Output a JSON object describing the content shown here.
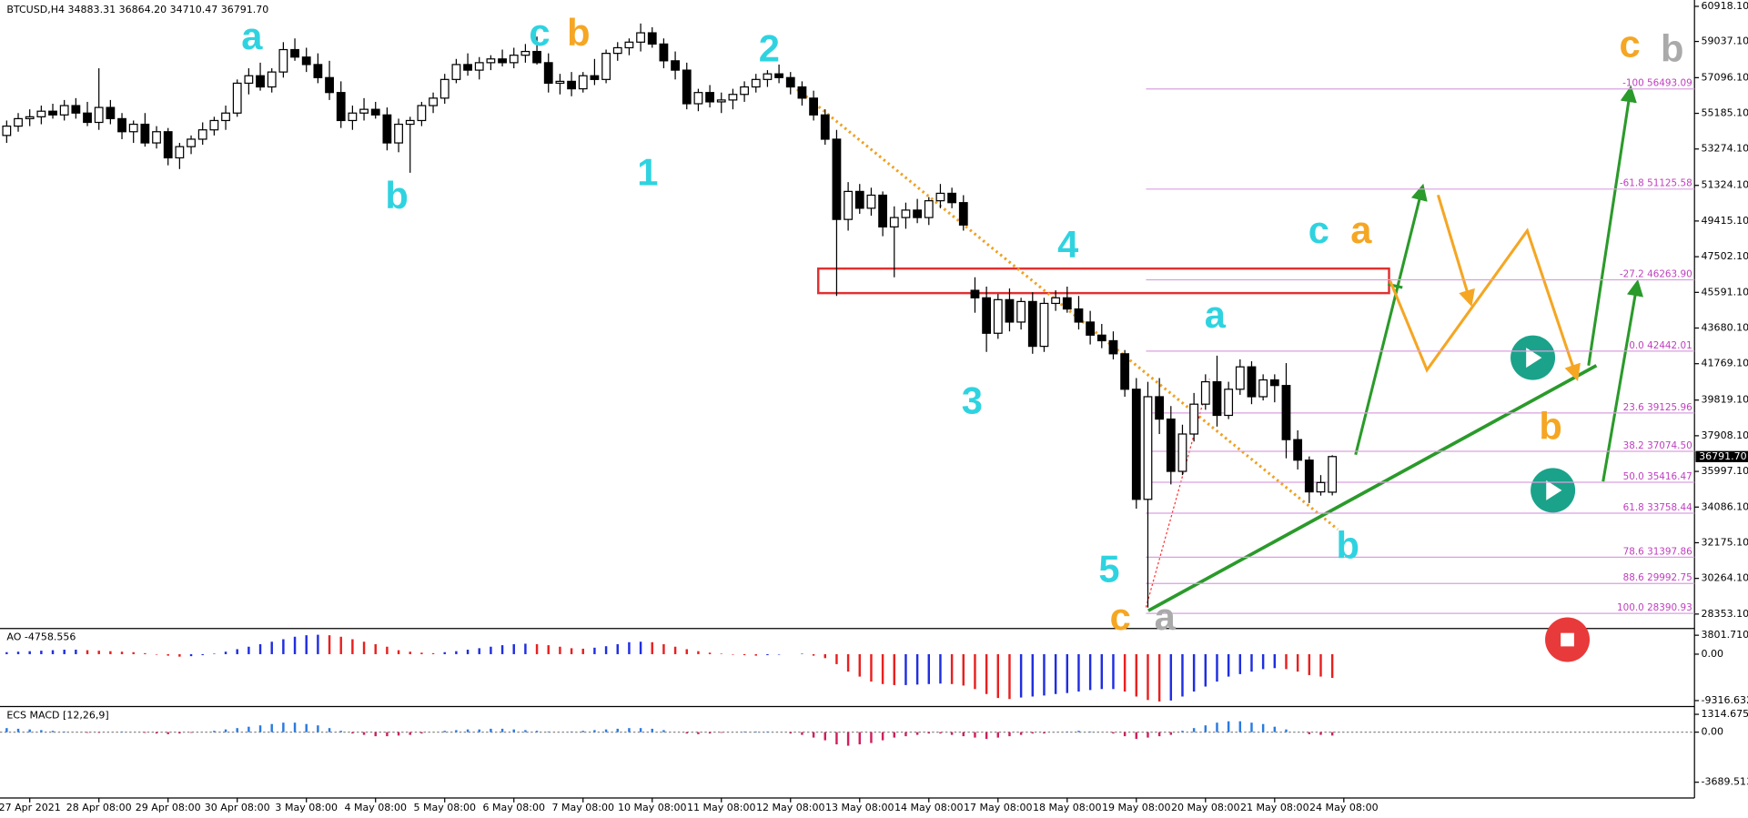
{
  "chart_data": {
    "type": "candlestick",
    "header": "BTCUSD,H4  34883.31 36864.20 34710.47 36791.70",
    "categories": [
      null,
      null,
      "27 Apr 2021",
      null,
      null,
      null,
      null,
      null,
      "28 Apr 08:00",
      null,
      null,
      null,
      null,
      null,
      "29 Apr 08:00",
      null,
      null,
      null,
      null,
      null,
      "30 Apr 08:00",
      null,
      null,
      null,
      null,
      null,
      "3 May 08:00",
      null,
      null,
      null,
      null,
      null,
      "4 May 08:00",
      null,
      null,
      null,
      null,
      null,
      "5 May 08:00",
      null,
      null,
      null,
      null,
      null,
      "6 May 08:00",
      null,
      null,
      null,
      null,
      null,
      "7 May 08:00",
      null,
      null,
      null,
      null,
      null,
      "10 May 08:00",
      null,
      null,
      null,
      null,
      null,
      "11 May 08:00",
      null,
      null,
      null,
      null,
      null,
      "12 May 08:00",
      null,
      null,
      null,
      null,
      null,
      "13 May 08:00",
      null,
      null,
      null,
      null,
      null,
      "14 May 08:00",
      null,
      null,
      null,
      null,
      null,
      "17 May 08:00",
      null,
      null,
      null,
      null,
      null,
      "18 May 08:00",
      null,
      null,
      null,
      null,
      null,
      "19 May 08:00",
      null,
      null,
      null,
      null,
      null,
      "20 May 08:00",
      null,
      null,
      null,
      null,
      null,
      "21 May 08:00",
      null,
      null,
      null,
      null,
      null,
      "24 May 08:00"
    ],
    "candles": [
      [
        54000,
        54800,
        53600,
        54500
      ],
      [
        54500,
        55200,
        54200,
        54900
      ],
      [
        54900,
        55400,
        54500,
        55000
      ],
      [
        55000,
        55600,
        54600,
        55300
      ],
      [
        55300,
        55700,
        54900,
        55100
      ],
      [
        55100,
        55900,
        54800,
        55600
      ],
      [
        55600,
        56000,
        54900,
        55200
      ],
      [
        55200,
        55800,
        54500,
        54700
      ],
      [
        54700,
        57600,
        54300,
        55500
      ],
      [
        55500,
        55900,
        54600,
        54900
      ],
      [
        54900,
        55200,
        53800,
        54200
      ],
      [
        54200,
        54800,
        53600,
        54600
      ],
      [
        54600,
        55200,
        53400,
        53600
      ],
      [
        53600,
        54500,
        53300,
        54200
      ],
      [
        54200,
        54400,
        52400,
        52800
      ],
      [
        52800,
        53600,
        52200,
        53400
      ],
      [
        53400,
        54000,
        53000,
        53800
      ],
      [
        53800,
        54700,
        53500,
        54300
      ],
      [
        54300,
        55000,
        54000,
        54800
      ],
      [
        54800,
        55600,
        54300,
        55200
      ],
      [
        55200,
        57000,
        55000,
        56800
      ],
      [
        56800,
        57600,
        56200,
        57200
      ],
      [
        57200,
        57900,
        56400,
        56600
      ],
      [
        56600,
        57600,
        56300,
        57400
      ],
      [
        57400,
        59000,
        57100,
        58600
      ],
      [
        58600,
        59200,
        58000,
        58200
      ],
      [
        58200,
        58700,
        57400,
        57800
      ],
      [
        57800,
        58400,
        56800,
        57100
      ],
      [
        57100,
        58000,
        55900,
        56300
      ],
      [
        56300,
        56900,
        54400,
        54800
      ],
      [
        54800,
        55600,
        54300,
        55200
      ],
      [
        55200,
        56000,
        54800,
        55400
      ],
      [
        55400,
        55800,
        54900,
        55100
      ],
      [
        55100,
        55500,
        53200,
        53600
      ],
      [
        53600,
        54900,
        53100,
        54600
      ],
      [
        54600,
        55000,
        52000,
        54800
      ],
      [
        54800,
        55800,
        54500,
        55600
      ],
      [
        55600,
        56300,
        55200,
        56000
      ],
      [
        56000,
        57300,
        55700,
        57000
      ],
      [
        57000,
        58100,
        56800,
        57800
      ],
      [
        57800,
        58400,
        57200,
        57500
      ],
      [
        57500,
        58200,
        57000,
        57900
      ],
      [
        57900,
        58300,
        57500,
        58100
      ],
      [
        58100,
        58600,
        57700,
        57900
      ],
      [
        57900,
        58700,
        57600,
        58300
      ],
      [
        58300,
        58900,
        57900,
        58500
      ],
      [
        58500,
        59300,
        57800,
        57900
      ],
      [
        57900,
        58400,
        56300,
        56800
      ],
      [
        56800,
        57300,
        56200,
        56900
      ],
      [
        56900,
        57400,
        56100,
        56500
      ],
      [
        56500,
        57400,
        56300,
        57200
      ],
      [
        57200,
        58100,
        56700,
        57000
      ],
      [
        57000,
        58600,
        56800,
        58400
      ],
      [
        58400,
        59000,
        58000,
        58700
      ],
      [
        58700,
        59200,
        58300,
        59000
      ],
      [
        59000,
        60000,
        58500,
        59500
      ],
      [
        59500,
        59800,
        58700,
        58900
      ],
      [
        58900,
        59200,
        57600,
        58000
      ],
      [
        58000,
        58500,
        57000,
        57500
      ],
      [
        57500,
        57900,
        55400,
        55700
      ],
      [
        55700,
        56500,
        55300,
        56300
      ],
      [
        56300,
        56700,
        55500,
        55800
      ],
      [
        55800,
        56300,
        55200,
        55900
      ],
      [
        55900,
        56500,
        55400,
        56200
      ],
      [
        56200,
        56900,
        55800,
        56600
      ],
      [
        56600,
        57300,
        56300,
        57000
      ],
      [
        57000,
        57500,
        56600,
        57300
      ],
      [
        57300,
        57800,
        56800,
        57100
      ],
      [
        57100,
        57400,
        56200,
        56600
      ],
      [
        56600,
        56900,
        55600,
        56000
      ],
      [
        56000,
        56400,
        54800,
        55100
      ],
      [
        55100,
        55400,
        53500,
        53800
      ],
      [
        53800,
        54300,
        45400,
        49500
      ],
      [
        49500,
        51500,
        48900,
        51000
      ],
      [
        51000,
        51400,
        49800,
        50100
      ],
      [
        50100,
        51200,
        49700,
        50800
      ],
      [
        50800,
        51000,
        48600,
        49100
      ],
      [
        49100,
        50200,
        46400,
        49600
      ],
      [
        49600,
        50400,
        49000,
        50000
      ],
      [
        50000,
        50600,
        49300,
        49600
      ],
      [
        49600,
        50700,
        49200,
        50500
      ],
      [
        50500,
        51400,
        50100,
        50900
      ],
      [
        50900,
        51200,
        50100,
        50400
      ],
      [
        50400,
        50800,
        48900,
        49200
      ],
      [
        45700,
        46400,
        44500,
        45300
      ],
      [
        45300,
        45900,
        42400,
        43400
      ],
      [
        43400,
        45500,
        43100,
        45200
      ],
      [
        45200,
        45800,
        43500,
        44000
      ],
      [
        44000,
        45300,
        43600,
        45100
      ],
      [
        45100,
        45600,
        42300,
        42700
      ],
      [
        42700,
        45300,
        42400,
        45000
      ],
      [
        45000,
        45700,
        44600,
        45300
      ],
      [
        45300,
        45900,
        44500,
        44700
      ],
      [
        44700,
        45400,
        43600,
        44000
      ],
      [
        44000,
        44600,
        42800,
        43300
      ],
      [
        43300,
        43900,
        42600,
        43000
      ],
      [
        43000,
        43500,
        42000,
        42300
      ],
      [
        42300,
        42500,
        40000,
        40400
      ],
      [
        40400,
        41000,
        34000,
        34500
      ],
      [
        34500,
        40800,
        28700,
        40000
      ],
      [
        40000,
        41000,
        38000,
        38800
      ],
      [
        38800,
        39500,
        35300,
        36000
      ],
      [
        36000,
        38500,
        35800,
        38000
      ],
      [
        38000,
        40200,
        37600,
        39600
      ],
      [
        39600,
        41200,
        39300,
        40800
      ],
      [
        40800,
        42200,
        38400,
        39000
      ],
      [
        39000,
        40800,
        38800,
        40400
      ],
      [
        40400,
        42000,
        40100,
        41600
      ],
      [
        41600,
        41900,
        39600,
        40000
      ],
      [
        40000,
        41200,
        39800,
        40900
      ],
      [
        40900,
        41200,
        39700,
        40600
      ],
      [
        40600,
        41800,
        36700,
        37700
      ],
      [
        37700,
        38200,
        36100,
        36600
      ],
      [
        36600,
        36800,
        34300,
        34900
      ],
      [
        34900,
        35800,
        34700,
        35400
      ],
      [
        34883.31,
        36864.2,
        34710.47,
        36791.7
      ],
      null
    ],
    "ylim": [
      27636,
      61139
    ],
    "yticks": [
      {
        "value": 60918.1,
        "label": "60918.10"
      },
      {
        "value": 59037.1,
        "label": "59037.10"
      },
      {
        "value": 57096.1,
        "label": "57096.10"
      },
      {
        "value": 55185.1,
        "label": "55185.10"
      },
      {
        "value": 53274.1,
        "label": "53274.10"
      },
      {
        "value": 51324.1,
        "label": "51324.10"
      },
      {
        "value": 49415.1,
        "label": "49415.10"
      },
      {
        "value": 47502.1,
        "label": "47502.10"
      },
      {
        "value": 45591.1,
        "label": "45591.10"
      },
      {
        "value": 43680.1,
        "label": "43680.10"
      },
      {
        "value": 41769.1,
        "label": "41769.10"
      },
      {
        "value": 39819.1,
        "label": "39819.10"
      },
      {
        "value": 37908.1,
        "label": "37908.10"
      },
      {
        "value": 35997.1,
        "label": "35997.10"
      },
      {
        "value": 34086.1,
        "label": "34086.10"
      },
      {
        "value": 32175.1,
        "label": "32175.10"
      },
      {
        "value": 30264.1,
        "label": "30264.10"
      },
      {
        "value": 28353.1,
        "label": "28353.10"
      }
    ],
    "current_price": {
      "value": 36791.7,
      "label": "36791.70"
    },
    "fib_levels": [
      {
        "value": 56493.09,
        "label": "-100  56493.09"
      },
      {
        "value": 51125.58,
        "label": "-61.8 51125.58"
      },
      {
        "value": 46263.9,
        "label": "-27.2 46263.90"
      },
      {
        "value": 42442.01,
        "label": "0.0 42442.01"
      },
      {
        "value": 39125.96,
        "label": "23.6 39125.96"
      },
      {
        "value": 37074.5,
        "label": "38.2 37074.50"
      },
      {
        "value": 35416.47,
        "label": "50.0 35416.47"
      },
      {
        "value": 33758.44,
        "label": "61.8 33758.44"
      },
      {
        "value": 31397.86,
        "label": "78.6 31397.86"
      },
      {
        "value": 29992.75,
        "label": "88.6 29992.75"
      },
      {
        "value": 28390.93,
        "label": "100.0 28390.93"
      }
    ],
    "annotations": [
      {
        "text": "a",
        "color": "#2fd3e0"
      },
      {
        "text": "b",
        "color": "#2fd3e0"
      },
      {
        "text": "c",
        "color": "#2fd3e0"
      },
      {
        "text": "b",
        "color": "#f5a623"
      },
      {
        "text": "1",
        "color": "#2fd3e0"
      },
      {
        "text": "2",
        "color": "#2fd3e0"
      },
      {
        "text": "3",
        "color": "#2fd3e0"
      },
      {
        "text": "4",
        "color": "#2fd3e0"
      },
      {
        "text": "5",
        "color": "#2fd3e0"
      },
      {
        "text": "c",
        "color": "#f5a623"
      },
      {
        "text": "a",
        "color": "#aaaaaa"
      },
      {
        "text": "a",
        "color": "#2fd3e0"
      },
      {
        "text": "c",
        "color": "#2fd3e0"
      },
      {
        "text": "a",
        "color": "#f5a623"
      },
      {
        "text": "b",
        "color": "#2fd3e0"
      },
      {
        "text": "b",
        "color": "#f5a623"
      },
      {
        "text": "c",
        "color": "#f5a623"
      },
      {
        "text": "b",
        "color": "#aaaaaa"
      }
    ],
    "ao": {
      "label": "AO -4758.556",
      "ylim": [
        -10290,
        4697
      ],
      "yticks": [
        {
          "value": 3801.71,
          "label": "3801.710"
        },
        {
          "value": 0,
          "label": "0.00"
        },
        {
          "value": -9316.632,
          "label": "-9316.632"
        }
      ],
      "values": [
        400,
        500,
        600,
        700,
        800,
        900,
        900,
        800,
        700,
        600,
        500,
        400,
        200,
        -100,
        -300,
        -500,
        -400,
        -200,
        100,
        500,
        1000,
        1500,
        2000,
        2500,
        3000,
        3500,
        3800,
        3900,
        3800,
        3500,
        3000,
        2500,
        2000,
        1500,
        800,
        500,
        300,
        200,
        400,
        600,
        900,
        1200,
        1500,
        1800,
        2000,
        2100,
        2000,
        1800,
        1500,
        1200,
        1100,
        1300,
        1600,
        2000,
        2400,
        2500,
        2400,
        2000,
        1500,
        1000,
        600,
        300,
        100,
        -100,
        -200,
        -300,
        -200,
        -100,
        0,
        100,
        -300,
        -800,
        -2000,
        -3500,
        -4500,
        -5500,
        -6000,
        -6200,
        -6200,
        -6100,
        -6000,
        -5900,
        -6000,
        -6300,
        -7000,
        -8000,
        -8800,
        -9000,
        -8700,
        -8500,
        -8300,
        -8000,
        -7800,
        -7500,
        -7200,
        -7000,
        -7000,
        -7500,
        -8500,
        -9200,
        -9500,
        -9300,
        -8500,
        -7500,
        -6500,
        -5500,
        -4500,
        -4000,
        -3500,
        -3000,
        -2800,
        -3000,
        -3500,
        -4200,
        -4500,
        -4758.556,
        null
      ]
    },
    "macd": {
      "label": "ECS MACD [12,26,9]",
      "ylim": [
        -4520,
        1640
      ],
      "yticks": [
        1314.6753,
        {
          "value": 0,
          "label": "0.00"
        },
        {
          "value": -3689.513,
          "label": "-3689.513"
        }
      ],
      "values": [
        300,
        250,
        200,
        150,
        100,
        50,
        0,
        -50,
        -50,
        0,
        50,
        0,
        -50,
        -100,
        -150,
        -100,
        -50,
        0,
        100,
        200,
        300,
        400,
        500,
        600,
        700,
        700,
        600,
        500,
        300,
        100,
        -100,
        -200,
        -300,
        -300,
        -250,
        -200,
        -100,
        0,
        100,
        150,
        200,
        200,
        250,
        250,
        200,
        150,
        100,
        50,
        0,
        50,
        100,
        150,
        200,
        250,
        300,
        300,
        250,
        150,
        0,
        -100,
        -150,
        -100,
        -50,
        0,
        50,
        50,
        50,
        0,
        -100,
        -200,
        -400,
        -600,
        -900,
        -1000,
        -900,
        -800,
        -600,
        -400,
        -300,
        -200,
        -100,
        -100,
        -200,
        -300,
        -400,
        -500,
        -400,
        -300,
        -200,
        -100,
        -100,
        0,
        50,
        100,
        50,
        0,
        -100,
        -300,
        -500,
        -400,
        -300,
        -200,
        100,
        300,
        500,
        700,
        800,
        800,
        700,
        600,
        400,
        200,
        0,
        -150,
        -200,
        -250,
        null
      ]
    }
  }
}
